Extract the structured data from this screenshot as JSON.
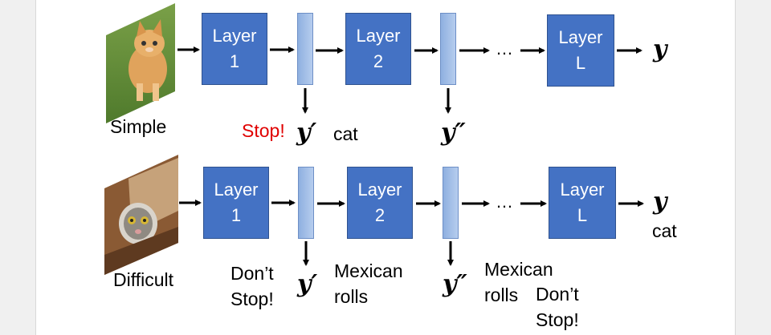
{
  "rows": [
    {
      "image_label": "Simple",
      "layers": [
        {
          "line1": "Layer",
          "line2": "1"
        },
        {
          "line1": "Layer",
          "line2": "2"
        },
        {
          "line1": "Layer",
          "line2": "L"
        }
      ],
      "ellipsis": "…",
      "output": "y",
      "exit1": {
        "symbol": "y′",
        "decision": "Stop!",
        "prediction": "cat"
      },
      "exit2": {
        "symbol": "y″"
      }
    },
    {
      "image_label": "Difficult",
      "layers": [
        {
          "line1": "Layer",
          "line2": "1"
        },
        {
          "line1": "Layer",
          "line2": "2"
        },
        {
          "line1": "Layer",
          "line2": "L"
        }
      ],
      "ellipsis": "…",
      "output": "y",
      "output_label": "cat",
      "exit1": {
        "symbol": "y′",
        "decision_line1": "Don’t",
        "decision_line2": "Stop!",
        "prediction_line1": "Mexican",
        "prediction_line2": "rolls"
      },
      "exit2": {
        "symbol": "y″",
        "prediction_line1": "Mexican",
        "prediction_line2": "rolls",
        "decision_line1": "Don’t",
        "decision_line2": "Stop!"
      }
    }
  ],
  "colors": {
    "layer": "#4472c4",
    "stop": "#e00000",
    "feature": "#9dbbe6"
  }
}
